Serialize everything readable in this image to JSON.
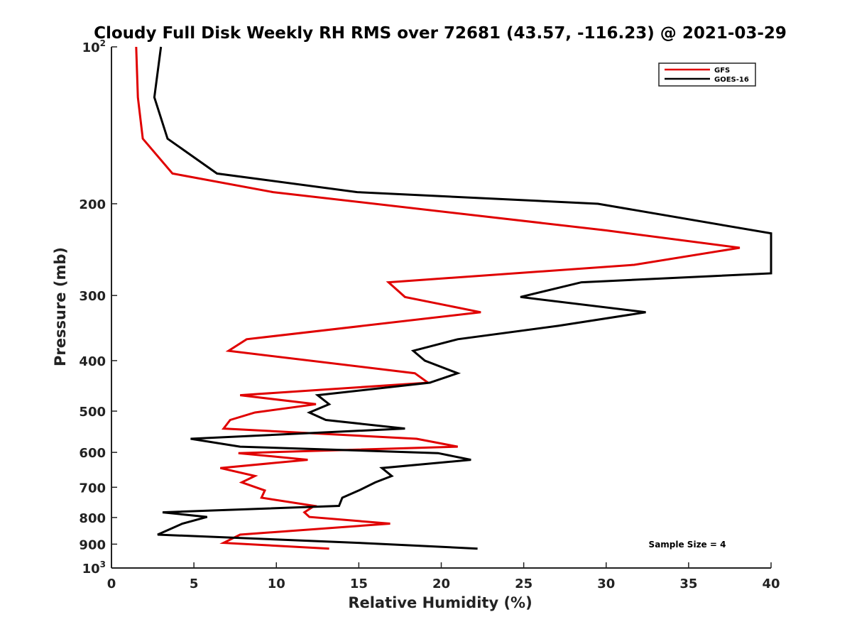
{
  "chart_data": {
    "type": "line",
    "title": "Cloudy Full Disk Weekly RH RMS over 72681 (43.57, -116.23) @ 2021-03-29",
    "xlabel": "Relative Humidity (%)",
    "ylabel": "Pressure (mb)",
    "xlim": [
      0,
      40
    ],
    "ylim": [
      100,
      1000
    ],
    "y_scale": "log",
    "y_reversed": true,
    "x_ticks": [
      0,
      5,
      10,
      15,
      20,
      25,
      30,
      35,
      40
    ],
    "y_ticks": [
      {
        "value": 100,
        "label": "10",
        "sup": "2"
      },
      {
        "value": 200,
        "label": "200",
        "sup": ""
      },
      {
        "value": 300,
        "label": "300",
        "sup": ""
      },
      {
        "value": 400,
        "label": "400",
        "sup": ""
      },
      {
        "value": 500,
        "label": "500",
        "sup": ""
      },
      {
        "value": 600,
        "label": "600",
        "sup": ""
      },
      {
        "value": 700,
        "label": "700",
        "sup": ""
      },
      {
        "value": 800,
        "label": "800",
        "sup": ""
      },
      {
        "value": 900,
        "label": "900",
        "sup": ""
      },
      {
        "value": 1000,
        "label": "10",
        "sup": "3"
      }
    ],
    "grid": false,
    "legend_position": "top-right",
    "annotation": "Sample Size = 4",
    "series": [
      {
        "name": "GFS",
        "color": "#e00000",
        "points": [
          [
            1.5,
            100
          ],
          [
            1.6,
            125
          ],
          [
            1.9,
            150
          ],
          [
            3.7,
            175
          ],
          [
            9.8,
            190
          ],
          [
            30.0,
            225
          ],
          [
            38.1,
            243
          ],
          [
            31.7,
            262
          ],
          [
            16.8,
            283
          ],
          [
            17.8,
            302
          ],
          [
            22.4,
            323
          ],
          [
            8.2,
            364
          ],
          [
            7.1,
            383
          ],
          [
            18.4,
            423
          ],
          [
            19.2,
            441
          ],
          [
            7.8,
            466
          ],
          [
            12.4,
            485
          ],
          [
            8.7,
            503
          ],
          [
            7.2,
            520
          ],
          [
            6.8,
            540
          ],
          [
            18.5,
            565
          ],
          [
            21.0,
            585
          ],
          [
            7.7,
            602
          ],
          [
            11.9,
            620
          ],
          [
            6.6,
            643
          ],
          [
            8.7,
            666
          ],
          [
            7.9,
            685
          ],
          [
            9.3,
            710
          ],
          [
            9.1,
            733
          ],
          [
            12.3,
            760
          ],
          [
            11.7,
            782
          ],
          [
            12.0,
            798
          ],
          [
            16.9,
            822
          ],
          [
            7.8,
            863
          ],
          [
            6.8,
            895
          ],
          [
            13.2,
            918
          ]
        ]
      },
      {
        "name": "GOES-16",
        "color": "#000000",
        "points": [
          [
            3.0,
            100
          ],
          [
            2.6,
            125
          ],
          [
            3.4,
            150
          ],
          [
            6.4,
            175
          ],
          [
            14.9,
            190
          ],
          [
            29.5,
            200
          ],
          [
            40.0,
            228
          ],
          [
            40.0,
            272
          ],
          [
            28.5,
            283
          ],
          [
            24.8,
            302
          ],
          [
            32.4,
            323
          ],
          [
            27.1,
            343
          ],
          [
            21.0,
            364
          ],
          [
            18.3,
            383
          ],
          [
            19.0,
            400
          ],
          [
            21.0,
            423
          ],
          [
            19.3,
            441
          ],
          [
            12.5,
            466
          ],
          [
            13.2,
            485
          ],
          [
            12.0,
            503
          ],
          [
            13.0,
            520
          ],
          [
            17.8,
            540
          ],
          [
            4.8,
            565
          ],
          [
            7.8,
            585
          ],
          [
            19.8,
            602
          ],
          [
            21.8,
            620
          ],
          [
            16.4,
            643
          ],
          [
            17.0,
            666
          ],
          [
            16.0,
            685
          ],
          [
            15.0,
            710
          ],
          [
            14.0,
            733
          ],
          [
            13.8,
            760
          ],
          [
            3.1,
            782
          ],
          [
            5.8,
            798
          ],
          [
            4.3,
            822
          ],
          [
            2.8,
            863
          ],
          [
            15.0,
            895
          ],
          [
            22.2,
            918
          ]
        ]
      }
    ]
  }
}
